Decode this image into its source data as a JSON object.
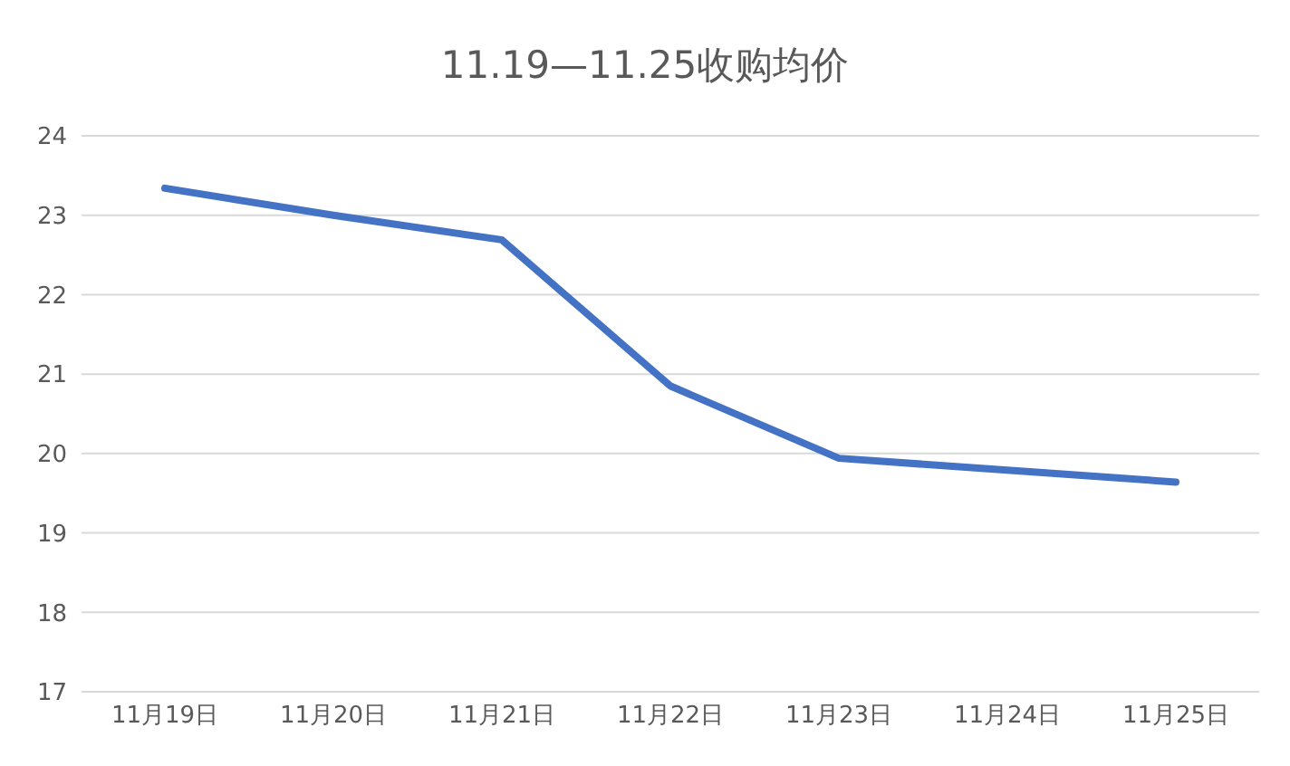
{
  "chart_data": {
    "type": "line",
    "title": "11.19—11.25收购均价",
    "categories": [
      "11月19日",
      "11月20日",
      "11月21日",
      "11月22日",
      "11月23日",
      "11月24日",
      "11月25日"
    ],
    "series": [
      {
        "color": "#4472c4",
        "values": [
          23.34,
          23.0,
          22.69,
          20.85,
          19.94,
          19.79,
          19.64
        ]
      }
    ],
    "ylim": [
      17,
      24
    ],
    "yticks": [
      17,
      18,
      19,
      20,
      21,
      22,
      23,
      24
    ],
    "grid": "y",
    "legend": false,
    "marker": "none",
    "line_style": "solid"
  }
}
